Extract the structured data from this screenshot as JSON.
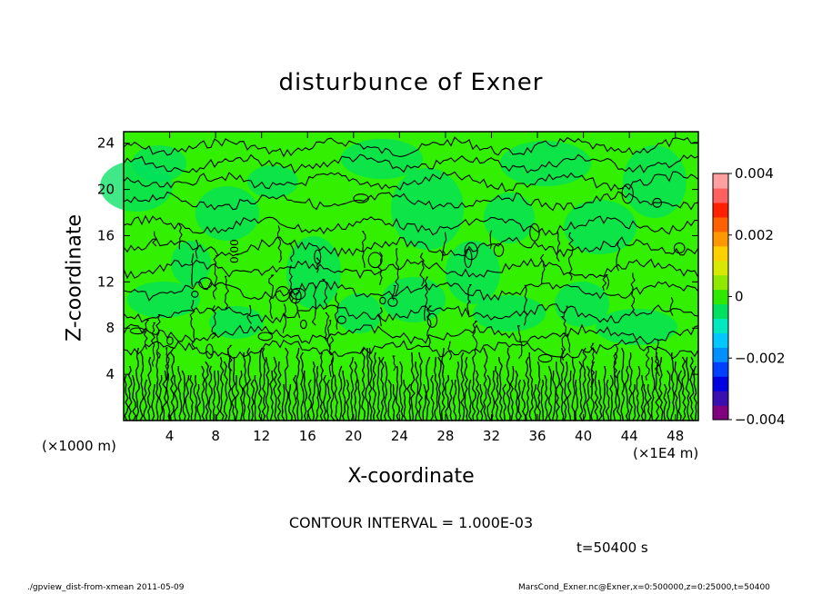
{
  "chart_data": {
    "type": "contour",
    "title": "disturbunce of Exner",
    "xlabel": "X-coordinate",
    "ylabel": "Z-coordinate",
    "x_unit_left": "(×1000 m)",
    "x_unit_right": "(×1E4 m)",
    "x_ticks": [
      "4",
      "8",
      "12",
      "16",
      "20",
      "24",
      "28",
      "32",
      "36",
      "40",
      "44",
      "48"
    ],
    "x_tick_values": [
      4,
      8,
      12,
      16,
      20,
      24,
      28,
      32,
      36,
      40,
      44,
      48
    ],
    "y_ticks": [
      "4",
      "8",
      "12",
      "16",
      "20",
      "24"
    ],
    "y_tick_values": [
      4,
      8,
      12,
      16,
      20,
      24
    ],
    "xlim": [
      0,
      50
    ],
    "ylim": [
      0,
      25
    ],
    "colorbar": {
      "labels": [
        "0.004",
        "0.002",
        "0",
        "−0.002",
        "−0.004"
      ],
      "label_values": [
        0.004,
        0.002,
        0,
        -0.002,
        -0.004
      ],
      "range": [
        -0.004,
        0.004
      ],
      "colors": [
        "#800080",
        "#3a0fb0",
        "#0000e0",
        "#0040ff",
        "#0090ff",
        "#00c8ff",
        "#00e8c0",
        "#00e060",
        "#2ee800",
        "#90e800",
        "#d8e800",
        "#ffd000",
        "#ff9800",
        "#ff6000",
        "#ff2000",
        "#ff6060",
        "#ffa0a0"
      ]
    },
    "field_colors": {
      "dominant": "#33f000",
      "negative": "#00e060"
    },
    "contour_labels": [
      "0.00"
    ],
    "contour_interval": "CONTOUR INTERVAL = 1.000E-03",
    "time": "t=50400 s"
  },
  "footer": {
    "left": "./gpview_dist-from-xmean  2011-05-09",
    "right": "MarsCond_Exner.nc@Exner,x=0:500000,z=0:25000,t=50400"
  }
}
